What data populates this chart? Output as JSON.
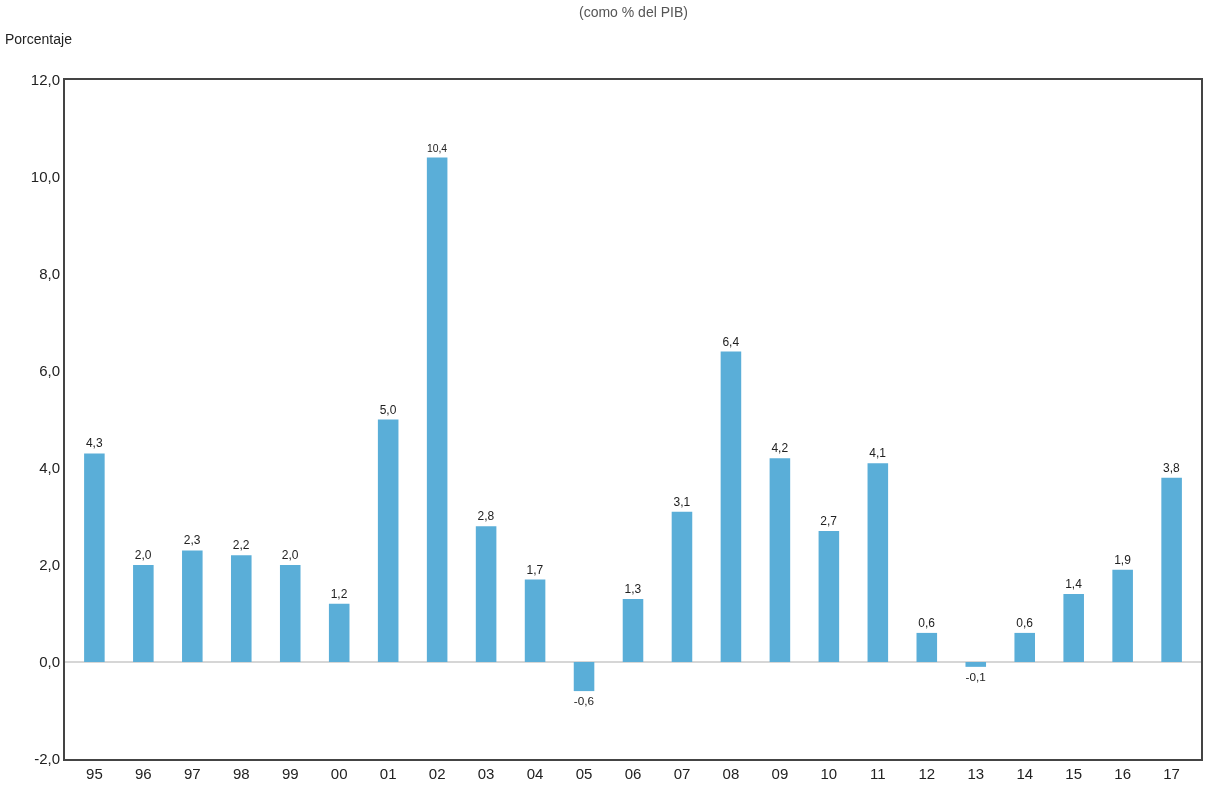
{
  "chart_data": {
    "type": "bar",
    "subtitle": "(como % del PIB)",
    "ylabel": "Porcentaje",
    "categories": [
      "95",
      "96",
      "97",
      "98",
      "99",
      "00",
      "01",
      "02",
      "03",
      "04",
      "05",
      "06",
      "07",
      "08",
      "09",
      "10",
      "11",
      "12",
      "13",
      "14",
      "15",
      "16",
      "17"
    ],
    "values": [
      4.3,
      2.0,
      2.3,
      2.2,
      2.0,
      1.2,
      5.0,
      10.4,
      2.8,
      1.7,
      -0.6,
      1.3,
      3.1,
      6.4,
      4.2,
      2.7,
      4.1,
      0.6,
      -0.1,
      0.6,
      1.4,
      1.9,
      3.8
    ],
    "value_labels": [
      "4,3",
      "2,0",
      "2,3",
      "2,2",
      "2,0",
      "1,2",
      "5,0",
      "10,4",
      "2,8",
      "1,7",
      "-0,6",
      "1,3",
      "3,1",
      "6,4",
      "4,2",
      "2,7",
      "4,1",
      "0,6",
      "-0,1",
      "0,6",
      "1,4",
      "1,9",
      "3,8"
    ],
    "color": "#5aaed8",
    "ylim": [
      -2,
      12
    ],
    "yticks": [
      {
        "value": -2,
        "label": "-2,0"
      },
      {
        "value": 0,
        "label": "0,0"
      },
      {
        "value": 2,
        "label": "2,0"
      },
      {
        "value": 4,
        "label": "4,0"
      },
      {
        "value": 6,
        "label": "6,0"
      },
      {
        "value": 8,
        "label": "8,0"
      },
      {
        "value": 10,
        "label": "10,0"
      },
      {
        "value": 12,
        "label": "12,0"
      }
    ],
    "ref_lines": [
      {
        "axis": "y",
        "value": 0,
        "color": "#c8c8c8"
      }
    ],
    "grid": false,
    "legend": false
  }
}
